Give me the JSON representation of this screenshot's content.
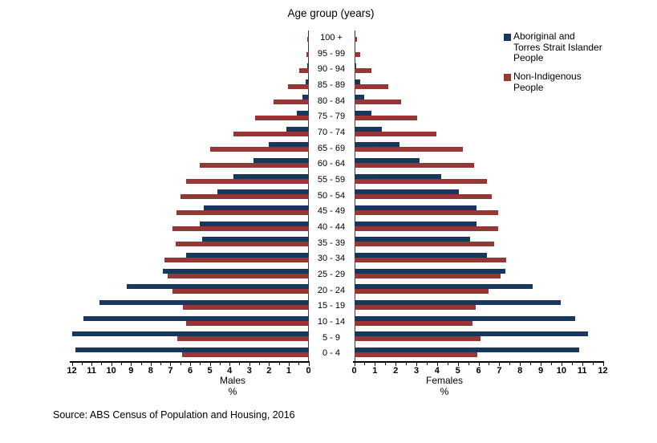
{
  "title": "Age group (years)",
  "legend": {
    "items": [
      {
        "label": "Aboriginal and Torres Strait Islander People",
        "color": "#17375E"
      },
      {
        "label": "Non-Indigenous People",
        "color": "#953735"
      }
    ]
  },
  "axis": {
    "left_title": "Males",
    "right_title": "Females",
    "unit_label": "%",
    "min": 0,
    "max": 12,
    "major_step": 1,
    "minor_step": 0.5
  },
  "source": "Source: ABS Census of Population and Housing, 2016",
  "chart_data": {
    "type": "bar",
    "subtype": "population-pyramid",
    "title": "Age group (years)",
    "xlabel_left": "Males",
    "xlabel_right": "Females",
    "unit": "%",
    "xlim": [
      0,
      12
    ],
    "grid": false,
    "legend_position": "top-right",
    "categories_top_to_bottom": [
      "100 +",
      "95 - 99",
      "90 - 94",
      "85 - 89",
      "80 - 84",
      "75 - 79",
      "70 - 74",
      "65 - 69",
      "60 - 64",
      "55 - 59",
      "50 - 54",
      "45 - 49",
      "40 - 44",
      "35 - 39",
      "30 - 34",
      "25 - 29",
      "20 - 24",
      "15 - 19",
      "10 - 14",
      "5 - 9",
      "0 - 4"
    ],
    "series": [
      {
        "name": "Aboriginal and Torres Strait Islander People",
        "color": "#17375E",
        "males_pct": [
          0.03,
          0.04,
          0.07,
          0.15,
          0.3,
          0.6,
          1.1,
          2.0,
          2.8,
          3.8,
          4.6,
          5.3,
          5.5,
          5.4,
          6.2,
          7.4,
          9.2,
          10.6,
          11.4,
          12.0,
          11.8
        ],
        "females_pct": [
          0.06,
          0.07,
          0.1,
          0.28,
          0.5,
          0.85,
          1.35,
          2.2,
          3.15,
          4.2,
          5.05,
          5.9,
          5.9,
          5.6,
          6.4,
          7.3,
          8.6,
          9.95,
          10.65,
          11.3,
          10.85
        ]
      },
      {
        "name": "Non-Indigenous People",
        "color": "#953735",
        "males_pct": [
          0.08,
          0.12,
          0.45,
          1.05,
          1.75,
          2.7,
          3.8,
          5.0,
          5.5,
          6.2,
          6.5,
          6.7,
          6.9,
          6.75,
          7.3,
          7.15,
          6.9,
          6.35,
          6.2,
          6.65,
          6.4
        ],
        "females_pct": [
          0.13,
          0.28,
          0.85,
          1.65,
          2.25,
          3.05,
          3.95,
          5.25,
          5.8,
          6.4,
          6.65,
          6.95,
          6.95,
          6.75,
          7.35,
          7.05,
          6.5,
          5.85,
          5.7,
          6.1,
          5.95
        ]
      }
    ]
  }
}
